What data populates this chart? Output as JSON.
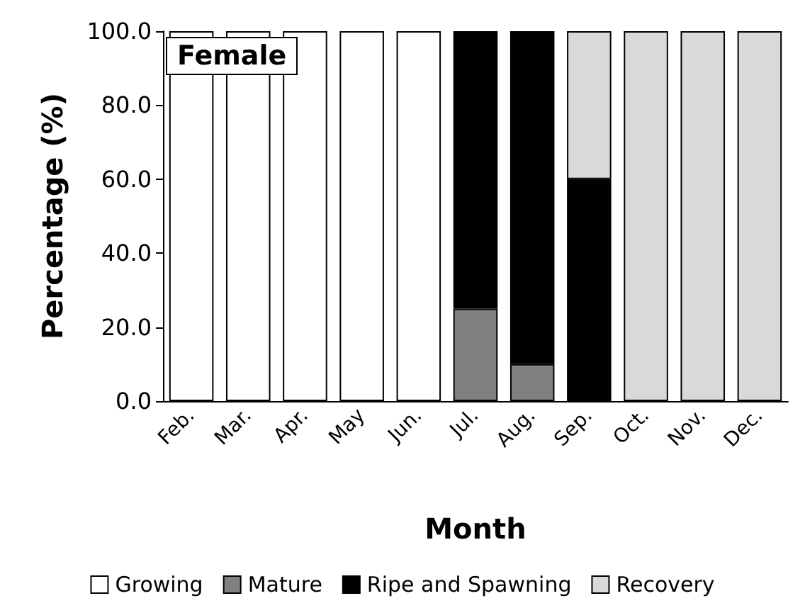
{
  "chart_data": {
    "type": "bar",
    "stacked": true,
    "xlabel": "Month",
    "ylabel": "Percentage (%)",
    "annotations": [
      "Female"
    ],
    "categories": [
      "Feb.",
      "Mar.",
      "Apr.",
      "May",
      "Jun.",
      "Jul.",
      "Aug.",
      "Sep.",
      "Oct.",
      "Nov.",
      "Dec."
    ],
    "series": [
      {
        "name": "Growing",
        "color": "#ffffff",
        "values": [
          100,
          100,
          100,
          100,
          100,
          0,
          0,
          0,
          0,
          0,
          0
        ]
      },
      {
        "name": "Mature",
        "color": "#808080",
        "values": [
          0,
          0,
          0,
          0,
          0,
          25,
          10,
          0,
          0,
          0,
          0
        ]
      },
      {
        "name": "Ripe and Spawning",
        "color": "#000000",
        "values": [
          0,
          0,
          0,
          0,
          0,
          75,
          90,
          60,
          0,
          0,
          0
        ]
      },
      {
        "name": "Recovery",
        "color": "#d9d9d9",
        "values": [
          0,
          0,
          0,
          0,
          0,
          0,
          0,
          40,
          100,
          100,
          100
        ]
      }
    ],
    "ylim": [
      0,
      100
    ],
    "yticks": [
      {
        "value": 0,
        "label": "0.0"
      },
      {
        "value": 20,
        "label": "20.0"
      },
      {
        "value": 40,
        "label": "40.0"
      },
      {
        "value": 60,
        "label": "60.0"
      },
      {
        "value": 80,
        "label": "80.0"
      },
      {
        "value": 100,
        "label": "100.0"
      }
    ],
    "grid": false,
    "legend": "bottom"
  }
}
